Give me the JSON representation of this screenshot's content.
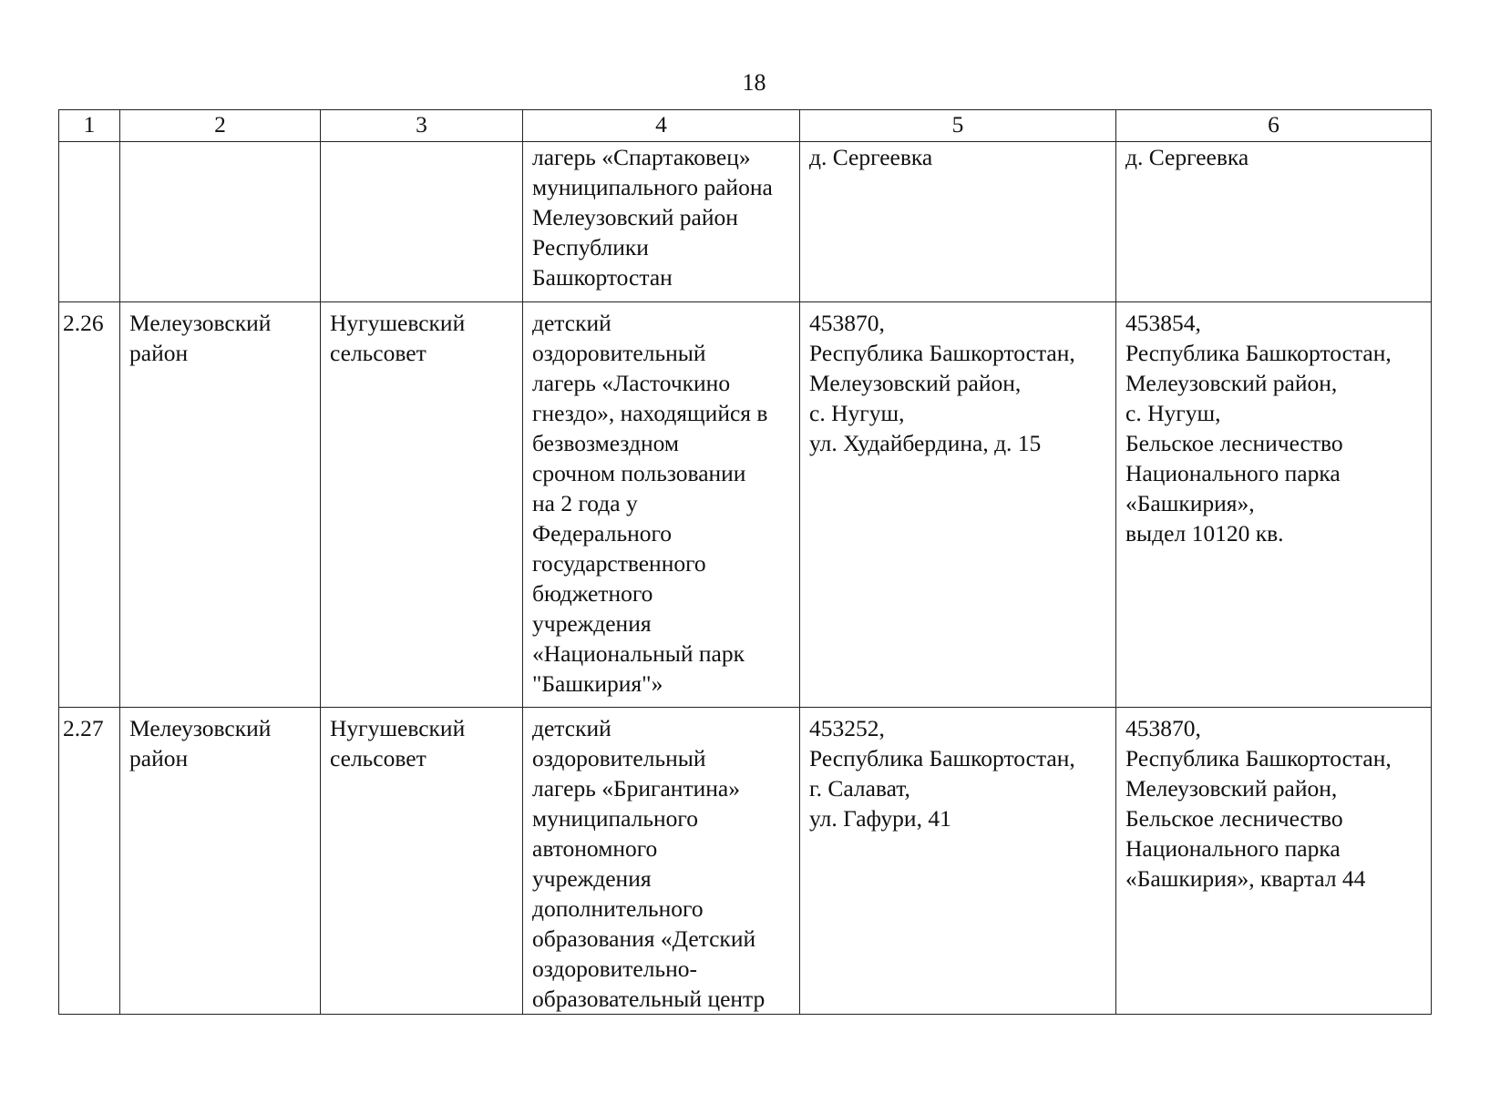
{
  "page_number": "18",
  "table": {
    "headers": [
      "1",
      "2",
      "3",
      "4",
      "5",
      "6"
    ],
    "rows": [
      {
        "num": "",
        "district": [],
        "council": [],
        "name": [
          "лагерь «Спартаковец»",
          "муниципального района",
          "Мелеузовский район",
          "Республики",
          "Башкортостан"
        ],
        "legal_address": [
          "д. Сергеевка"
        ],
        "actual_address": [
          "д. Сергеевка"
        ]
      },
      {
        "num": "2.26",
        "district": [
          "Мелеузовский",
          "район"
        ],
        "council": [
          "Нугушевский",
          "сельсовет"
        ],
        "name": [
          "детский",
          "оздоровительный",
          "лагерь «Ласточкино",
          "гнездо», находящийся в",
          "безвозмездном",
          "срочном пользовании",
          "на 2 года у",
          "Федерального",
          "государственного",
          "бюджетного",
          "учреждения",
          "«Национальный парк",
          "\"Башкирия\"»"
        ],
        "legal_address": [
          "453870,",
          "Республика Башкортостан,",
          "Мелеузовский район,",
          "с. Нугуш,",
          "ул. Худайбердина, д. 15"
        ],
        "actual_address": [
          "453854,",
          "Республика Башкортостан,",
          "Мелеузовский район,",
          "с. Нугуш,",
          "Бельское лесничество",
          "Национального парка",
          "«Башкирия»,",
          "выдел 10120 кв."
        ]
      },
      {
        "num": "2.27",
        "district": [
          "Мелеузовский",
          "район"
        ],
        "council": [
          "Нугушевский",
          "сельсовет"
        ],
        "name": [
          "детский",
          "оздоровительный",
          "лагерь «Бригантина»",
          "муниципального",
          "автономного",
          "учреждения",
          "дополнительного",
          "образования «Детский",
          "оздоровительно-",
          "образовательный центр"
        ],
        "legal_address": [
          "453252,",
          "Республика Башкортостан,",
          "г. Салават,",
          "ул. Гафури, 41"
        ],
        "actual_address": [
          "453870,",
          "Республика Башкортостан,",
          "Мелеузовский район,",
          "Бельское лесничество",
          "Национального парка",
          "«Башкирия», квартал 44"
        ]
      }
    ]
  }
}
